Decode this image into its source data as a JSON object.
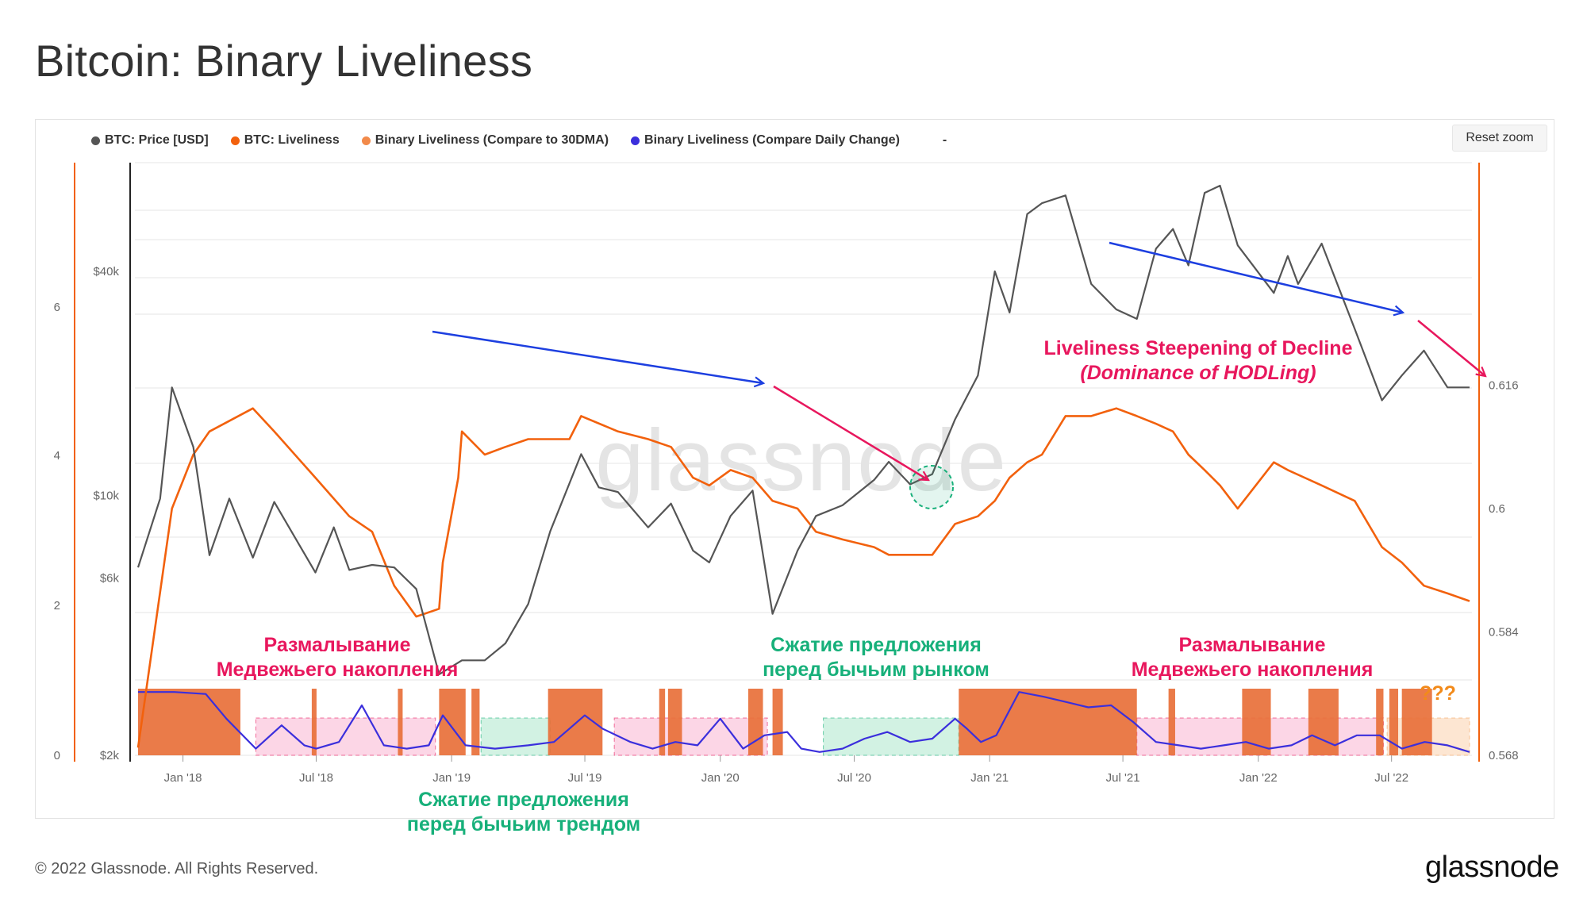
{
  "title": "Bitcoin: Binary Liveliness",
  "reset_zoom_label": "Reset zoom",
  "copyright": "© 2022 Glassnode. All Rights Reserved.",
  "brand": "glassnode",
  "watermark": "glassnode",
  "legend": [
    {
      "label": "BTC: Price [USD]",
      "color": "#555555"
    },
    {
      "label": "BTC: Liveliness",
      "color": "#f2610d"
    },
    {
      "label": "Binary Liveliness (Compare to 30DMA)",
      "color": "#f28a4a"
    },
    {
      "label": "Binary Liveliness (Compare Daily Change)",
      "color": "#3b2fdc"
    },
    {
      "label": "-",
      "color": ""
    }
  ],
  "chart_data": {
    "type": "line",
    "x_ticks": [
      "Jan '18",
      "Jul '18",
      "Jan '19",
      "Jul '19",
      "Jan '20",
      "Jul '20",
      "Jan '21",
      "Jul '21",
      "Jan '22",
      "Jul '22"
    ],
    "x_range": [
      "2017-11-01",
      "2022-10-15"
    ],
    "y_left_ticks": [
      "0",
      "2",
      "4",
      "6"
    ],
    "y_price_ticks": [
      "$2k",
      "$6k",
      "$10k",
      "$40k"
    ],
    "y_price_scale": "log",
    "y_right_ticks": [
      "0.568",
      "0.584",
      "0.6",
      "0.616"
    ],
    "y_right_range": [
      0.568,
      0.632
    ],
    "series": [
      {
        "name": "BTC: Price [USD]",
        "color": "#555555",
        "x": [
          "2017-11-01",
          "2017-12-01",
          "2017-12-17",
          "2018-01-15",
          "2018-02-06",
          "2018-03-05",
          "2018-04-06",
          "2018-05-05",
          "2018-06-30",
          "2018-07-25",
          "2018-08-15",
          "2018-09-15",
          "2018-10-15",
          "2018-11-14",
          "2018-12-15",
          "2019-01-15",
          "2019-02-15",
          "2019-03-15",
          "2019-04-15",
          "2019-05-15",
          "2019-06-26",
          "2019-07-20",
          "2019-08-15",
          "2019-09-25",
          "2019-10-26",
          "2019-11-25",
          "2019-12-17",
          "2020-01-15",
          "2020-02-14",
          "2020-03-12",
          "2020-04-15",
          "2020-05-10",
          "2020-06-15",
          "2020-07-28",
          "2020-08-17",
          "2020-09-15",
          "2020-10-15",
          "2020-11-15",
          "2020-12-16",
          "2021-01-08",
          "2021-01-28",
          "2021-02-21",
          "2021-03-13",
          "2021-04-14",
          "2021-05-19",
          "2021-06-22",
          "2021-07-20",
          "2021-08-15",
          "2021-09-07",
          "2021-09-28",
          "2021-10-20",
          "2021-11-10",
          "2021-12-04",
          "2022-01-22",
          "2022-02-10",
          "2022-02-24",
          "2022-03-28",
          "2022-05-12",
          "2022-06-18",
          "2022-07-15",
          "2022-08-14",
          "2022-09-15",
          "2022-10-15"
        ],
        "values": [
          6400,
          9800,
          19500,
          13500,
          6900,
          9800,
          6800,
          9600,
          6200,
          8200,
          6300,
          6500,
          6400,
          5600,
          3300,
          3600,
          3600,
          4000,
          5100,
          8000,
          12900,
          10500,
          10200,
          8200,
          9500,
          7100,
          6600,
          8800,
          10300,
          4800,
          7100,
          8800,
          9400,
          11000,
          12300,
          10700,
          11400,
          16000,
          21000,
          40000,
          31000,
          57000,
          61000,
          64000,
          37000,
          31600,
          29800,
          46000,
          52000,
          41500,
          65000,
          68000,
          47000,
          35000,
          44000,
          37000,
          47500,
          28000,
          18000,
          21000,
          24500,
          19500,
          19500
        ]
      },
      {
        "name": "BTC: Liveliness",
        "color": "#f2610d",
        "x": [
          "2017-11-01",
          "2017-12-17",
          "2018-01-15",
          "2018-02-06",
          "2018-04-06",
          "2018-05-05",
          "2018-06-30",
          "2018-08-15",
          "2018-09-15",
          "2018-10-15",
          "2018-11-14",
          "2018-12-15",
          "2018-12-20",
          "2019-01-10",
          "2019-01-15",
          "2019-02-15",
          "2019-03-15",
          "2019-04-15",
          "2019-05-15",
          "2019-06-10",
          "2019-06-26",
          "2019-08-15",
          "2019-09-25",
          "2019-10-26",
          "2019-11-25",
          "2019-12-17",
          "2020-01-15",
          "2020-02-14",
          "2020-03-12",
          "2020-04-15",
          "2020-05-10",
          "2020-06-15",
          "2020-07-28",
          "2020-08-17",
          "2020-09-15",
          "2020-10-15",
          "2020-11-15",
          "2020-12-16",
          "2021-01-08",
          "2021-01-28",
          "2021-02-21",
          "2021-03-13",
          "2021-04-14",
          "2021-05-19",
          "2021-06-22",
          "2021-07-20",
          "2021-08-15",
          "2021-09-07",
          "2021-09-28",
          "2021-10-20",
          "2021-11-10",
          "2021-12-04",
          "2022-01-22",
          "2022-02-10",
          "2022-03-28",
          "2022-05-12",
          "2022-06-18",
          "2022-07-15",
          "2022-08-14",
          "2022-09-15",
          "2022-10-15"
        ],
        "values": [
          0.569,
          0.6,
          0.607,
          0.61,
          0.613,
          0.61,
          0.604,
          0.599,
          0.597,
          0.59,
          0.586,
          0.587,
          0.593,
          0.604,
          0.61,
          0.607,
          0.608,
          0.609,
          0.609,
          0.609,
          0.612,
          0.61,
          0.609,
          0.608,
          0.604,
          0.603,
          0.605,
          0.604,
          0.601,
          0.6,
          0.597,
          0.596,
          0.595,
          0.594,
          0.594,
          0.594,
          0.598,
          0.599,
          0.601,
          0.604,
          0.606,
          0.607,
          0.612,
          0.612,
          0.613,
          0.612,
          0.611,
          0.61,
          0.607,
          0.605,
          0.603,
          0.6,
          0.606,
          0.605,
          0.603,
          0.601,
          0.595,
          0.593,
          0.59,
          0.589,
          0.588
        ]
      },
      {
        "name": "Binary Liveliness (Compare Daily Change)",
        "color": "#3b2fdc",
        "x": [
          "2017-11-01",
          "2017-12-20",
          "2018-02-01",
          "2018-03-01",
          "2018-04-10",
          "2018-05-15",
          "2018-06-15",
          "2018-07-01",
          "2018-08-01",
          "2018-09-01",
          "2018-10-01",
          "2018-11-01",
          "2018-12-01",
          "2018-12-20",
          "2019-01-20",
          "2019-03-01",
          "2019-04-15",
          "2019-05-20",
          "2019-06-10",
          "2019-07-01",
          "2019-07-25",
          "2019-09-01",
          "2019-10-01",
          "2019-11-01",
          "2019-12-01",
          "2020-01-01",
          "2020-02-01",
          "2020-03-01",
          "2020-04-01",
          "2020-04-20",
          "2020-05-15",
          "2020-06-15",
          "2020-07-15",
          "2020-08-15",
          "2020-09-15",
          "2020-10-15",
          "2020-11-15",
          "2020-12-01",
          "2020-12-20",
          "2021-01-10",
          "2021-02-10",
          "2021-03-15",
          "2021-04-15",
          "2021-05-15",
          "2021-06-15",
          "2021-07-15",
          "2021-08-15",
          "2021-09-15",
          "2021-10-15",
          "2021-11-15",
          "2021-12-15",
          "2022-01-15",
          "2022-02-15",
          "2022-03-15",
          "2022-04-15",
          "2022-05-15",
          "2022-06-15",
          "2022-07-15",
          "2022-08-15",
          "2022-09-15",
          "2022-10-15"
        ],
        "values": [
          0.95,
          0.95,
          0.92,
          0.55,
          0.1,
          0.45,
          0.15,
          0.1,
          0.2,
          0.75,
          0.15,
          0.1,
          0.15,
          0.6,
          0.15,
          0.1,
          0.15,
          0.2,
          0.4,
          0.6,
          0.4,
          0.2,
          0.1,
          0.2,
          0.15,
          0.55,
          0.1,
          0.3,
          0.35,
          0.1,
          0.05,
          0.1,
          0.25,
          0.35,
          0.2,
          0.25,
          0.55,
          0.4,
          0.2,
          0.3,
          0.95,
          0.88,
          0.8,
          0.72,
          0.75,
          0.5,
          0.2,
          0.15,
          0.1,
          0.15,
          0.2,
          0.1,
          0.15,
          0.3,
          0.15,
          0.3,
          0.3,
          0.1,
          0.2,
          0.15,
          0.05
        ]
      }
    ],
    "annotations": [
      {
        "text": "Liveliness Steepening of Decline",
        "color": "#e8175d"
      },
      {
        "text": "(Dominance of HODLing)",
        "color": "#e8175d"
      },
      {
        "text": "Размалывание",
        "color": "#e8175d"
      },
      {
        "text": "Медвежьего накопления",
        "color": "#e8175d"
      },
      {
        "text": "Сжатие предложения",
        "color": "#17b07a"
      },
      {
        "text": "перед бычьим трендом",
        "color": "#17b07a"
      },
      {
        "text": "Сжатие предложения",
        "color": "#17b07a"
      },
      {
        "text": "перед бычьим рынком",
        "color": "#17b07a"
      },
      {
        "text": "Размалывание",
        "color": "#e8175d"
      },
      {
        "text": "Медвежьего накопления",
        "color": "#e8175d"
      },
      {
        "text": "???",
        "color": "#f28a1a"
      }
    ],
    "regions": [
      {
        "type": "bear-grind",
        "from": "2018-04-10",
        "to": "2018-12-10",
        "color": "#fcd6e6"
      },
      {
        "type": "supply-squeeze",
        "from": "2019-02-10",
        "to": "2019-05-15",
        "color": "#d2f2e3"
      },
      {
        "type": "bear-grind",
        "from": "2019-08-10",
        "to": "2020-03-05",
        "color": "#fcd6e6"
      },
      {
        "type": "supply-squeeze",
        "from": "2020-05-20",
        "to": "2020-11-20",
        "color": "#d2f2e3"
      },
      {
        "type": "bear-grind",
        "from": "2021-07-20",
        "to": "2022-06-20",
        "color": "#fcd6e6"
      },
      {
        "type": "unknown",
        "from": "2022-06-25",
        "to": "2022-10-15",
        "color": "#fde6d2"
      }
    ],
    "binary_30dma_active": [
      [
        "2017-11-01",
        "2018-03-20"
      ],
      [
        "2018-06-25",
        "2018-07-01"
      ],
      [
        "2018-10-20",
        "2018-10-25"
      ],
      [
        "2018-12-15",
        "2019-01-20"
      ],
      [
        "2019-01-28",
        "2019-02-08"
      ],
      [
        "2019-05-12",
        "2019-07-25"
      ],
      [
        "2019-10-10",
        "2019-10-18"
      ],
      [
        "2019-10-22",
        "2019-11-10"
      ],
      [
        "2020-02-08",
        "2020-02-28"
      ],
      [
        "2020-03-12",
        "2020-03-26"
      ],
      [
        "2020-11-20",
        "2021-07-20"
      ],
      [
        "2021-09-01",
        "2021-09-10"
      ],
      [
        "2021-12-10",
        "2022-01-18"
      ],
      [
        "2022-03-10",
        "2022-04-20"
      ],
      [
        "2022-06-10",
        "2022-06-20"
      ],
      [
        "2022-06-28",
        "2022-07-10"
      ],
      [
        "2022-07-15",
        "2022-08-25"
      ]
    ]
  }
}
